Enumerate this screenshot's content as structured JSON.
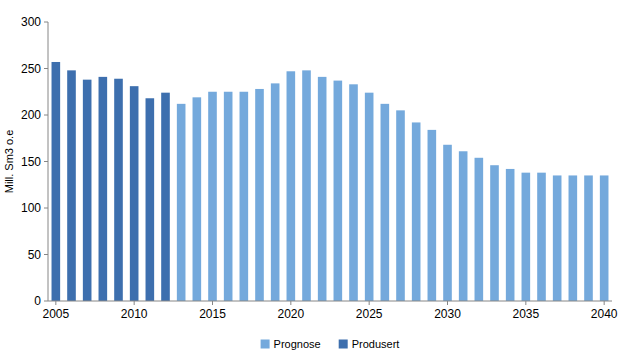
{
  "chart_data": {
    "type": "bar",
    "y_label": "Mill. Sm3 o.e",
    "categories": [
      "2005",
      null,
      null,
      null,
      null,
      "2010",
      null,
      null,
      null,
      null,
      "2015",
      null,
      null,
      null,
      null,
      "2020",
      null,
      null,
      null,
      null,
      "2025",
      null,
      null,
      null,
      null,
      "2030",
      null,
      null,
      null,
      null,
      "2035",
      null,
      null,
      null,
      null,
      "2040"
    ],
    "series": [
      {
        "name": "Prognose",
        "color": "#74a9dc",
        "values": [
          null,
          null,
          null,
          null,
          null,
          null,
          null,
          null,
          212,
          219,
          225,
          225,
          225,
          228,
          234,
          247,
          248,
          241,
          237,
          233,
          224,
          212,
          205,
          192,
          184,
          168,
          161,
          154,
          146,
          142,
          138,
          138,
          135,
          135,
          135,
          135
        ]
      },
      {
        "name": "Produsert",
        "color": "#3d6fae",
        "values": [
          257,
          248,
          238,
          241,
          239,
          231,
          218,
          224,
          null,
          null,
          null,
          null,
          null,
          null,
          null,
          null,
          null,
          null,
          null,
          null,
          null,
          null,
          null,
          null,
          null,
          null,
          null,
          null,
          null,
          null,
          null,
          null,
          null,
          null,
          null,
          null
        ]
      }
    ],
    "stacked": true,
    "ylim": [
      0,
      300
    ],
    "yticks": [
      0,
      50,
      100,
      150,
      200,
      250,
      300
    ],
    "grid": false,
    "legend": "bottom"
  }
}
